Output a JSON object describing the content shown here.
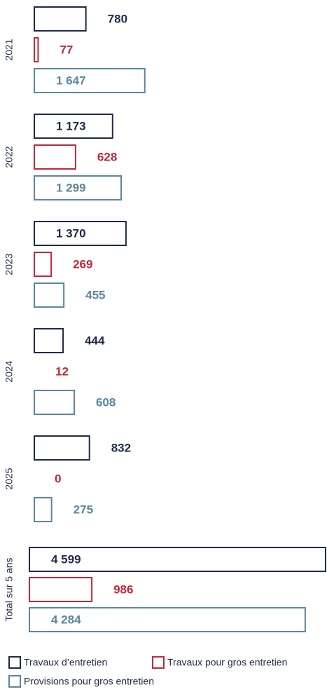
{
  "chart_data": [
    {
      "type": "bar",
      "orientation": "horizontal",
      "categories": [
        "2021",
        "2022",
        "2023",
        "2024",
        "2025"
      ],
      "xlim": [
        0,
        2000
      ],
      "series": [
        {
          "name": "Travaux d’entretien",
          "color": "#1f2a4a",
          "values": [
            780,
            1173,
            1370,
            444,
            832
          ],
          "value_labels": [
            "780",
            "1 173",
            "1 370",
            "444",
            "832"
          ]
        },
        {
          "name": "Travaux pour gros entretien",
          "color": "#c0283a",
          "values": [
            77,
            628,
            269,
            12,
            0
          ],
          "value_labels": [
            "77",
            "628",
            "269",
            "12",
            "0"
          ]
        },
        {
          "name": "Provisions pour gros entretien",
          "color": "#5b86a0",
          "values": [
            1647,
            1299,
            455,
            608,
            275
          ],
          "value_labels": [
            "1 647",
            "1 299",
            "455",
            "608",
            "275"
          ]
        }
      ]
    },
    {
      "type": "bar",
      "orientation": "horizontal",
      "categories": [
        "Total sur 5 ans"
      ],
      "xlim": [
        0,
        5000
      ],
      "series": [
        {
          "color": "#1f2a4a",
          "values": [
            4599
          ],
          "value_labels": [
            "4 599"
          ]
        },
        {
          "color": "#c0283a",
          "values": [
            986
          ],
          "value_labels": [
            "986"
          ]
        },
        {
          "color": "#5b86a0",
          "values": [
            4284
          ],
          "value_labels": [
            "4 284"
          ]
        }
      ]
    }
  ]
}
